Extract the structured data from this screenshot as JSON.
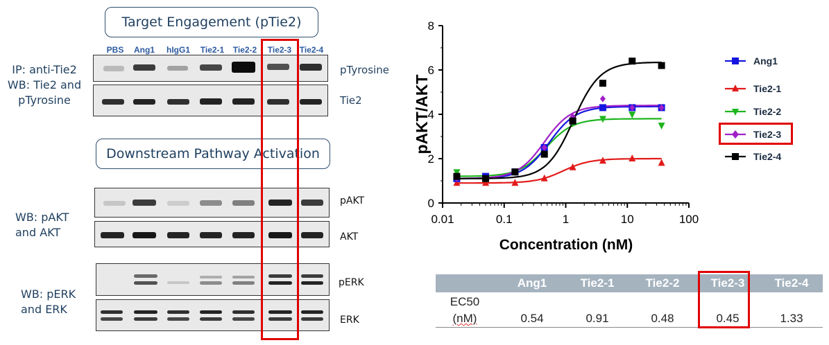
{
  "left_panel": {
    "title_top": "Target Engagement (pTie2)",
    "title_mid": "Downstream Pathway Activation",
    "lanes": [
      "PBS",
      "Ang1",
      "hIgG1",
      "Tie2-1",
      "Tie2-2",
      "Tie2-3",
      "Tie2-4"
    ],
    "label_ip": [
      "IP: anti-Tie2",
      "WB: Tie2 and",
      "pTyrosine"
    ],
    "label_akt": [
      "WB: pAKT",
      "and AKT"
    ],
    "label_erk": [
      "WB: pERK",
      "and ERK"
    ],
    "blot_names": {
      "ptyr": "pTyrosine",
      "tie2": "Tie2",
      "pakt": "pAKT",
      "akt": "AKT",
      "perk": "pERK",
      "erk": "ERK"
    },
    "colors": {
      "text": "#1f3f5f",
      "lane_label": "#2b5aa0",
      "highlight": "#e00000"
    }
  },
  "chart_data": {
    "type": "scatter",
    "xlabel": "Concentration (nM)",
    "ylabel": "pAKT/AKT",
    "xscale": "log",
    "xlim": [
      0.01,
      100
    ],
    "ylim": [
      0,
      8
    ],
    "xticks": [
      "0.01",
      "0.1",
      "1",
      "10",
      "100"
    ],
    "yticks": [
      "0",
      "2",
      "4",
      "6",
      "8"
    ],
    "legend_position": "right",
    "highlighted_series": "Tie2-3",
    "series": [
      {
        "name": "Ang1",
        "color": "#1515e0",
        "marker": "square",
        "x": [
          0.017,
          0.05,
          0.15,
          0.45,
          1.3,
          4,
          12,
          36
        ],
        "y": [
          1.1,
          1.2,
          1.4,
          2.5,
          3.7,
          4.3,
          4.3,
          4.3
        ],
        "fit": {
          "bottom": 1.1,
          "top": 4.35,
          "ec50": 0.54,
          "hill": 2.0
        }
      },
      {
        "name": "Tie2-1",
        "color": "#e31a1a",
        "marker": "triangle-up",
        "x": [
          0.017,
          0.05,
          0.15,
          0.45,
          1.3,
          4,
          12,
          36
        ],
        "y": [
          0.9,
          0.9,
          0.9,
          1.1,
          1.6,
          1.9,
          2.0,
          1.8
        ],
        "fit": {
          "bottom": 0.9,
          "top": 2.0,
          "ec50": 0.91,
          "hill": 2.0
        }
      },
      {
        "name": "Tie2-2",
        "color": "#1fb51f",
        "marker": "triangle-down",
        "x": [
          0.017,
          0.05,
          0.15,
          0.45,
          1.3,
          4,
          12,
          36
        ],
        "y": [
          1.4,
          1.1,
          1.4,
          2.4,
          3.6,
          3.8,
          4.0,
          3.5
        ],
        "fit": {
          "bottom": 1.2,
          "top": 3.8,
          "ec50": 0.48,
          "hill": 2.0
        }
      },
      {
        "name": "Tie2-3",
        "color": "#a020c8",
        "marker": "diamond",
        "x": [
          0.017,
          0.05,
          0.15,
          0.45,
          1.3,
          4,
          12,
          36
        ],
        "y": [
          1.1,
          1.1,
          1.4,
          2.5,
          3.9,
          4.7,
          4.3,
          4.3
        ],
        "fit": {
          "bottom": 1.1,
          "top": 4.4,
          "ec50": 0.45,
          "hill": 2.0
        }
      },
      {
        "name": "Tie2-4",
        "color": "#000000",
        "marker": "square",
        "x": [
          0.017,
          0.05,
          0.15,
          0.45,
          1.3,
          4,
          12,
          36
        ],
        "y": [
          1.2,
          1.1,
          1.4,
          2.2,
          3.7,
          5.4,
          6.4,
          6.2
        ],
        "fit": {
          "bottom": 1.1,
          "top": 6.35,
          "ec50": 1.33,
          "hill": 2.0
        }
      }
    ]
  },
  "ec50_table": {
    "headers": [
      "",
      "Ang1",
      "Tie2-1",
      "Tie2-2",
      "Tie2-3",
      "Tie2-4"
    ],
    "row_label_line1": "EC50",
    "row_label_line2": "(nM)",
    "values": [
      "0.54",
      "0.91",
      "0.48",
      "0.45",
      "1.33"
    ]
  }
}
